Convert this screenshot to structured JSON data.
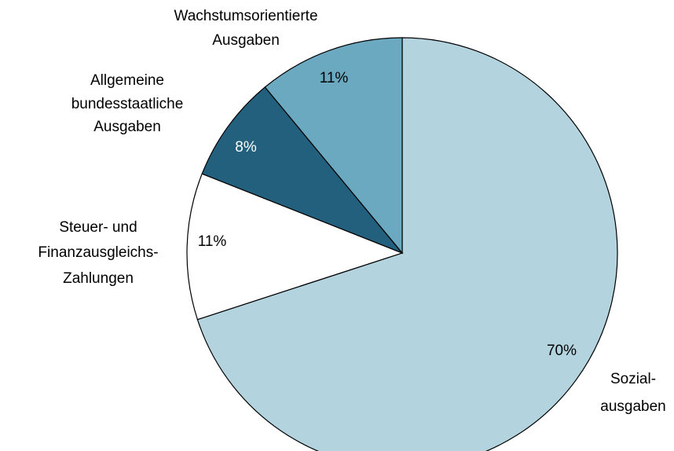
{
  "chart_data": {
    "type": "pie",
    "categories": [
      [
        "Sozial-",
        "ausgaben"
      ],
      [
        "Steuer- und",
        "Finanzausgleichs-",
        "Zahlungen"
      ],
      [
        "Allgemeine",
        "bundesstaatliche",
        "Ausgaben"
      ],
      [
        "Wachstumsorientierte",
        "Ausgaben"
      ]
    ],
    "values": [
      70,
      11,
      8,
      11
    ],
    "value_labels": [
      "70%",
      "11%",
      "8%",
      "11%"
    ],
    "colors": [
      "#b3d3df",
      "#ffffff",
      "#23607e",
      "#6ba9c0"
    ]
  }
}
